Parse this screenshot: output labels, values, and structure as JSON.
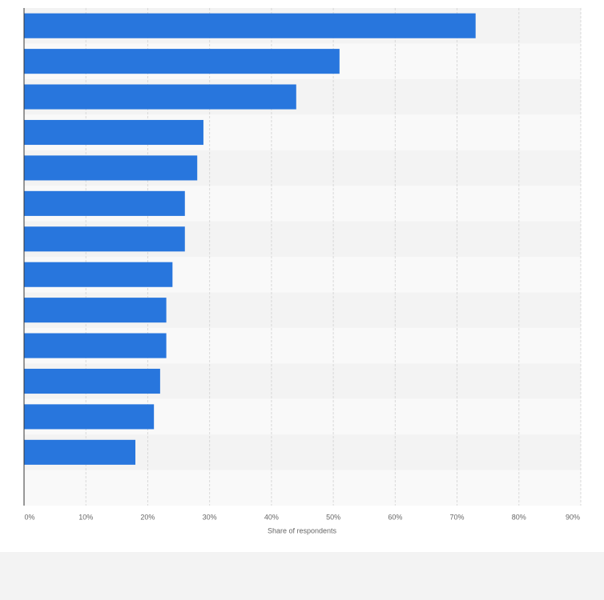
{
  "chart_data": {
    "type": "bar",
    "orientation": "horizontal",
    "categories": [
      null,
      null,
      null,
      null,
      null,
      null,
      null,
      null,
      null,
      null,
      null,
      null,
      null
    ],
    "values": [
      73,
      51,
      44,
      29,
      28,
      26,
      26,
      24,
      23,
      23,
      22,
      21,
      18
    ],
    "color": "#2876dd",
    "x_label": "Share of respondents",
    "xlim": [
      0,
      90
    ],
    "xticks": [
      {
        "value": 0,
        "label": "0%"
      },
      {
        "value": 10,
        "label": "10%"
      },
      {
        "value": 20,
        "label": "20%"
      },
      {
        "value": 30,
        "label": "30%"
      },
      {
        "value": 40,
        "label": "40%"
      },
      {
        "value": 50,
        "label": "50%"
      },
      {
        "value": 60,
        "label": "60%"
      },
      {
        "value": 70,
        "label": "70%"
      },
      {
        "value": 80,
        "label": "80%"
      },
      {
        "value": 90,
        "label": "90%"
      }
    ],
    "grid": true
  }
}
